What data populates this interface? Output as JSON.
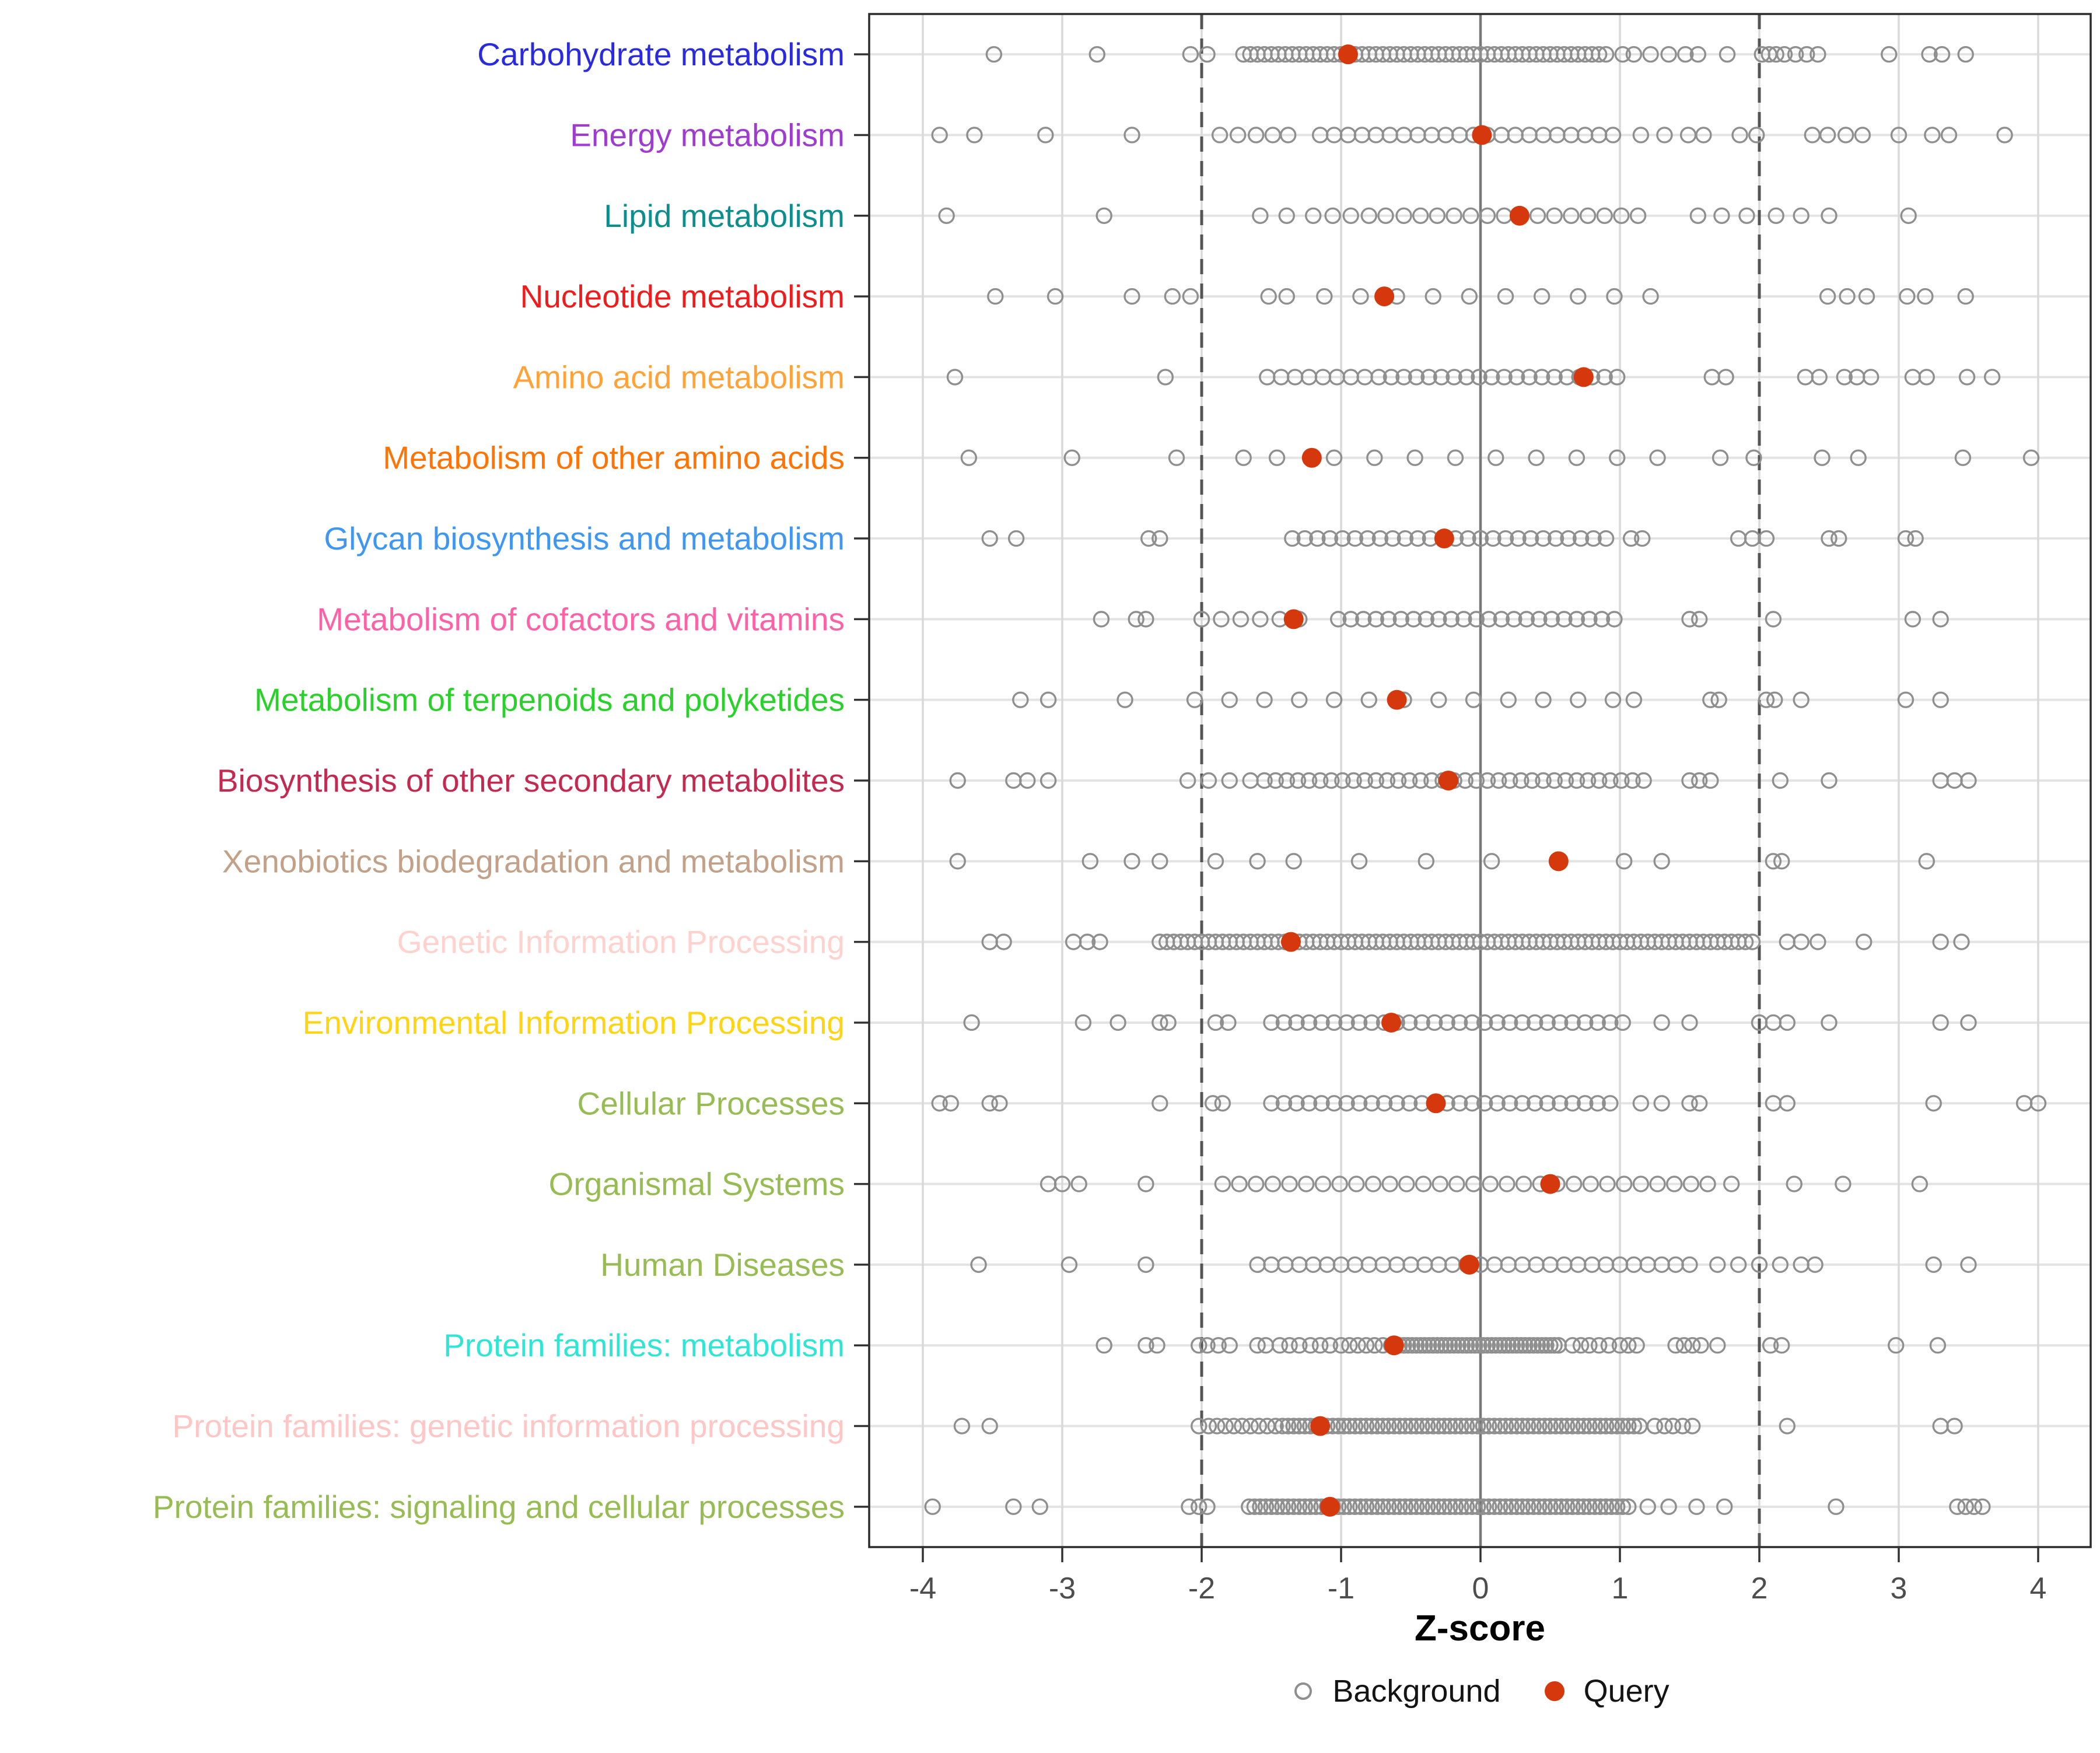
{
  "axis": {
    "xlabel": "Z-score",
    "tick_labels": [
      "-4",
      "-3",
      "-2",
      "-1",
      "0",
      "1",
      "2",
      "3",
      "4"
    ],
    "tick_values": [
      -4,
      -3,
      -2,
      -1,
      0,
      1,
      2,
      3,
      4
    ],
    "reference_lines": {
      "solid_at": 0,
      "dashed_at": [
        -2,
        2
      ]
    }
  },
  "legend": {
    "background_label": "Background",
    "query_label": "Query"
  },
  "colors": {
    "background_stroke": "#8F8F8F",
    "query_fill": "#D5380C",
    "grid_vertical": "#D9D9D9",
    "grid_row": "#E3E3E3",
    "zero_line": "#787878",
    "dashed_line": "#555555",
    "axis_text": "#4D4D4D",
    "tick_mark": "#333333",
    "panel_border": "#2B2B2B",
    "legend_text": "#141414"
  },
  "chart_data": {
    "type": "scatter",
    "title": "",
    "xlabel": "Z-score",
    "xlim": [
      -4.38,
      4.38
    ],
    "grid": true,
    "legend_position": "bottom",
    "series_legend": [
      "Background",
      "Query"
    ],
    "rows": [
      {
        "label": "Carbohydrate metabolism",
        "color": "#2A2ADF",
        "query": -0.95,
        "background": [
          -3.49,
          -2.75,
          -2.08,
          -1.96,
          -1.7,
          -1.65,
          -1.6,
          -1.55,
          -1.5,
          -1.45,
          -1.4,
          -1.35,
          -1.3,
          -1.25,
          -1.2,
          -1.15,
          -1.1,
          -1.05,
          -1.0,
          -0.95,
          -0.9,
          -0.85,
          -0.8,
          -0.75,
          -0.7,
          -0.65,
          -0.6,
          -0.55,
          -0.5,
          -0.45,
          -0.4,
          -0.35,
          -0.3,
          -0.25,
          -0.2,
          -0.15,
          -0.1,
          -0.05,
          0.0,
          0.05,
          0.1,
          0.15,
          0.2,
          0.25,
          0.3,
          0.35,
          0.4,
          0.45,
          0.5,
          0.55,
          0.6,
          0.65,
          0.7,
          0.75,
          0.8,
          0.85,
          0.9,
          1.02,
          1.1,
          1.22,
          1.35,
          1.47,
          1.56,
          1.77,
          2.02,
          2.07,
          2.12,
          2.18,
          2.26,
          2.34,
          2.42,
          2.93,
          3.22,
          3.31,
          3.48
        ]
      },
      {
        "label": "Energy metabolism",
        "color": "#9F3BD0",
        "query": 0.01,
        "background": [
          -3.88,
          -3.63,
          -3.12,
          -2.5,
          -1.87,
          -1.74,
          -1.61,
          -1.49,
          -1.38,
          -1.15,
          -1.05,
          -0.95,
          -0.85,
          -0.75,
          -0.65,
          -0.55,
          -0.45,
          -0.35,
          -0.25,
          -0.15,
          -0.05,
          0.05,
          0.15,
          0.25,
          0.35,
          0.45,
          0.55,
          0.65,
          0.75,
          0.85,
          0.95,
          1.15,
          1.32,
          1.49,
          1.6,
          1.86,
          1.98,
          2.38,
          2.49,
          2.62,
          2.74,
          3.0,
          3.24,
          3.36,
          3.76
        ]
      },
      {
        "label": "Lipid metabolism",
        "color": "#0D8E8E",
        "query": 0.28,
        "background": [
          -3.83,
          -2.7,
          -1.58,
          -1.39,
          -1.2,
          -1.06,
          -0.93,
          -0.8,
          -0.68,
          -0.55,
          -0.43,
          -0.31,
          -0.19,
          -0.07,
          0.05,
          0.17,
          0.29,
          0.41,
          0.53,
          0.65,
          0.77,
          0.89,
          1.01,
          1.13,
          1.56,
          1.73,
          1.91,
          2.12,
          2.3,
          2.5,
          3.07
        ]
      },
      {
        "label": "Nucleotide metabolism",
        "color": "#EE1C1C",
        "query": -0.69,
        "background": [
          -3.48,
          -3.05,
          -2.5,
          -2.21,
          -2.08,
          -1.52,
          -1.39,
          -1.12,
          -0.86,
          -0.6,
          -0.34,
          -0.08,
          0.18,
          0.44,
          0.7,
          0.96,
          1.22,
          2.49,
          2.63,
          2.77,
          3.06,
          3.19,
          3.48
        ]
      },
      {
        "label": "Amino acid metabolism",
        "color": "#FFA238",
        "query": 0.74,
        "background": [
          -3.77,
          -2.26,
          -1.53,
          -1.43,
          -1.33,
          -1.23,
          -1.13,
          -1.03,
          -0.93,
          -0.83,
          -0.73,
          -0.64,
          -0.55,
          -0.46,
          -0.37,
          -0.28,
          -0.19,
          -0.1,
          -0.01,
          0.08,
          0.17,
          0.26,
          0.35,
          0.44,
          0.53,
          0.62,
          0.71,
          0.8,
          0.89,
          0.98,
          1.66,
          1.76,
          2.33,
          2.43,
          2.61,
          2.7,
          2.8,
          3.1,
          3.2,
          3.49,
          3.67
        ]
      },
      {
        "label": "Metabolism of other amino acids",
        "color": "#FF7405",
        "query": -1.21,
        "background": [
          -3.67,
          -2.93,
          -2.18,
          -1.7,
          -1.46,
          -1.05,
          -0.76,
          -0.47,
          -0.18,
          0.11,
          0.4,
          0.69,
          0.98,
          1.27,
          1.72,
          1.96,
          2.45,
          2.71,
          3.46,
          3.95
        ]
      },
      {
        "label": "Glycan biosynthesis and metabolism",
        "color": "#4097F2",
        "query": -0.26,
        "background": [
          -3.52,
          -3.33,
          -2.38,
          -2.3,
          -1.35,
          -1.26,
          -1.17,
          -1.08,
          -0.99,
          -0.9,
          -0.81,
          -0.72,
          -0.63,
          -0.54,
          -0.45,
          -0.36,
          -0.27,
          -0.18,
          -0.09,
          0.0,
          0.09,
          0.18,
          0.27,
          0.36,
          0.45,
          0.54,
          0.63,
          0.72,
          0.81,
          0.9,
          1.08,
          1.16,
          1.85,
          1.95,
          2.05,
          2.5,
          2.57,
          3.05,
          3.12
        ]
      },
      {
        "label": "Metabolism of cofactors and vitamins",
        "color": "#FF61A6",
        "query": -1.34,
        "background": [
          -2.72,
          -2.47,
          -2.4,
          -2.0,
          -1.86,
          -1.72,
          -1.58,
          -1.44,
          -1.3,
          -1.02,
          -0.93,
          -0.84,
          -0.75,
          -0.66,
          -0.57,
          -0.48,
          -0.39,
          -0.3,
          -0.21,
          -0.12,
          -0.03,
          0.06,
          0.15,
          0.24,
          0.33,
          0.42,
          0.51,
          0.6,
          0.69,
          0.78,
          0.87,
          0.96,
          1.5,
          1.57,
          2.1,
          3.1,
          3.3
        ]
      },
      {
        "label": "Metabolism of terpenoids and polyketides",
        "color": "#2BD12B",
        "query": -0.6,
        "background": [
          -3.3,
          -3.1,
          -2.55,
          -2.05,
          -1.8,
          -1.55,
          -1.3,
          -1.05,
          -0.8,
          -0.55,
          -0.3,
          -0.05,
          0.2,
          0.45,
          0.7,
          0.95,
          1.1,
          1.65,
          1.71,
          2.05,
          2.11,
          2.3,
          3.05,
          3.3
        ]
      },
      {
        "label": "Biosynthesis of other secondary metabolites",
        "color": "#C22A50",
        "query": -0.23,
        "background": [
          -3.75,
          -3.35,
          -3.25,
          -3.1,
          -2.1,
          -1.95,
          -1.8,
          -1.65,
          -1.55,
          -1.47,
          -1.39,
          -1.31,
          -1.23,
          -1.15,
          -1.07,
          -0.99,
          -0.91,
          -0.83,
          -0.75,
          -0.67,
          -0.59,
          -0.51,
          -0.43,
          -0.35,
          -0.27,
          -0.19,
          -0.11,
          -0.03,
          0.05,
          0.13,
          0.21,
          0.29,
          0.37,
          0.45,
          0.53,
          0.61,
          0.69,
          0.77,
          0.85,
          0.93,
          1.01,
          1.09,
          1.17,
          1.5,
          1.57,
          1.65,
          2.15,
          2.5,
          3.3,
          3.4,
          3.5
        ]
      },
      {
        "label": "Xenobiotics biodegradation and metabolism",
        "color": "#C3A189",
        "query": 0.56,
        "background": [
          -3.75,
          -2.8,
          -2.5,
          -2.3,
          -1.9,
          -1.6,
          -1.34,
          -0.87,
          -0.39,
          0.08,
          1.03,
          1.3,
          2.1,
          2.16,
          3.2
        ]
      },
      {
        "label": "Genetic Information Processing",
        "color": "#FFD2CE",
        "query": -1.36,
        "background": [
          -3.52,
          -3.42,
          -2.92,
          -2.82,
          -2.73,
          -2.3,
          -2.25,
          -2.2,
          -2.15,
          -2.1,
          -2.05,
          -2.0,
          -1.95,
          -1.9,
          -1.85,
          -1.8,
          -1.75,
          -1.7,
          -1.65,
          -1.6,
          -1.55,
          -1.5,
          -1.45,
          -1.4,
          -1.35,
          -1.3,
          -1.25,
          -1.2,
          -1.15,
          -1.1,
          -1.05,
          -1.0,
          -0.95,
          -0.9,
          -0.85,
          -0.8,
          -0.75,
          -0.7,
          -0.65,
          -0.6,
          -0.55,
          -0.5,
          -0.45,
          -0.4,
          -0.35,
          -0.3,
          -0.25,
          -0.2,
          -0.15,
          -0.1,
          -0.05,
          0.0,
          0.05,
          0.1,
          0.15,
          0.2,
          0.25,
          0.3,
          0.35,
          0.4,
          0.45,
          0.5,
          0.55,
          0.6,
          0.65,
          0.7,
          0.75,
          0.8,
          0.85,
          0.9,
          0.95,
          1.0,
          1.05,
          1.1,
          1.15,
          1.2,
          1.25,
          1.3,
          1.35,
          1.4,
          1.45,
          1.5,
          1.55,
          1.6,
          1.65,
          1.7,
          1.75,
          1.8,
          1.85,
          1.9,
          1.95,
          2.2,
          2.3,
          2.42,
          2.75,
          3.3,
          3.45
        ]
      },
      {
        "label": "Environmental Information Processing",
        "color": "#FFD414",
        "query": -0.64,
        "background": [
          -3.65,
          -2.85,
          -2.6,
          -2.3,
          -2.24,
          -1.9,
          -1.81,
          -1.5,
          -1.41,
          -1.32,
          -1.23,
          -1.14,
          -1.05,
          -0.96,
          -0.87,
          -0.78,
          -0.69,
          -0.6,
          -0.51,
          -0.42,
          -0.33,
          -0.24,
          -0.15,
          -0.06,
          0.03,
          0.12,
          0.21,
          0.3,
          0.39,
          0.48,
          0.57,
          0.66,
          0.75,
          0.84,
          0.93,
          1.02,
          1.3,
          1.5,
          2.0,
          2.1,
          2.2,
          2.5,
          3.3,
          3.5
        ]
      },
      {
        "label": "Cellular Processes",
        "color": "#97BC54",
        "query": -0.32,
        "background": [
          -3.88,
          -3.8,
          -3.52,
          -3.45,
          -2.3,
          -1.92,
          -1.85,
          -1.5,
          -1.41,
          -1.32,
          -1.23,
          -1.14,
          -1.05,
          -0.96,
          -0.87,
          -0.78,
          -0.69,
          -0.6,
          -0.51,
          -0.42,
          -0.33,
          -0.24,
          -0.15,
          -0.06,
          0.03,
          0.12,
          0.21,
          0.3,
          0.39,
          0.48,
          0.57,
          0.66,
          0.75,
          0.84,
          0.93,
          1.15,
          1.3,
          1.5,
          1.57,
          2.1,
          2.2,
          3.25,
          3.9,
          4.0
        ]
      },
      {
        "label": "Organismal Systems",
        "color": "#97BC54",
        "query": 0.5,
        "background": [
          -3.1,
          -3.0,
          -2.88,
          -2.4,
          -1.85,
          -1.73,
          -1.61,
          -1.49,
          -1.37,
          -1.25,
          -1.13,
          -1.01,
          -0.89,
          -0.77,
          -0.65,
          -0.53,
          -0.41,
          -0.29,
          -0.17,
          -0.05,
          0.07,
          0.19,
          0.31,
          0.43,
          0.55,
          0.67,
          0.79,
          0.91,
          1.03,
          1.15,
          1.27,
          1.39,
          1.51,
          1.63,
          1.8,
          2.25,
          2.6,
          3.15
        ]
      },
      {
        "label": "Human Diseases",
        "color": "#97BC54",
        "query": -0.08,
        "background": [
          -3.6,
          -2.95,
          -2.4,
          -1.6,
          -1.5,
          -1.4,
          -1.3,
          -1.2,
          -1.1,
          -1.0,
          -0.9,
          -0.8,
          -0.7,
          -0.6,
          -0.5,
          -0.4,
          -0.3,
          -0.2,
          -0.1,
          0.0,
          0.1,
          0.2,
          0.3,
          0.4,
          0.5,
          0.6,
          0.7,
          0.8,
          0.9,
          1.0,
          1.1,
          1.2,
          1.3,
          1.4,
          1.5,
          1.7,
          1.85,
          2.0,
          2.15,
          2.3,
          2.4,
          3.25,
          3.5
        ]
      },
      {
        "label": "Protein families: metabolism",
        "color": "#2FE5D5",
        "query": -0.62,
        "background": [
          -2.7,
          -2.4,
          -2.32,
          -2.02,
          -1.96,
          -1.88,
          -1.8,
          -1.6,
          -1.54,
          -1.44,
          -1.37,
          -1.3,
          -1.22,
          -1.15,
          -1.08,
          -1.0,
          -0.94,
          -0.88,
          -0.82,
          -0.76,
          -0.7,
          -0.64,
          -0.61,
          -0.58,
          -0.55,
          -0.52,
          -0.49,
          -0.46,
          -0.43,
          -0.4,
          -0.37,
          -0.34,
          -0.31,
          -0.28,
          -0.25,
          -0.22,
          -0.19,
          -0.16,
          -0.13,
          -0.1,
          -0.07,
          -0.04,
          -0.01,
          0.02,
          0.05,
          0.08,
          0.11,
          0.14,
          0.17,
          0.2,
          0.23,
          0.26,
          0.29,
          0.32,
          0.35,
          0.38,
          0.41,
          0.44,
          0.47,
          0.5,
          0.53,
          0.56,
          0.66,
          0.72,
          0.78,
          0.85,
          0.92,
          1.0,
          1.06,
          1.12,
          1.4,
          1.46,
          1.52,
          1.58,
          1.7,
          2.08,
          2.16,
          2.98,
          3.28
        ]
      },
      {
        "label": "Protein families: genetic information processing",
        "color": "#FFC6C6",
        "query": -1.15,
        "background": [
          -3.72,
          -3.52,
          -2.02,
          -1.95,
          -1.89,
          -1.83,
          -1.77,
          -1.71,
          -1.65,
          -1.59,
          -1.53,
          -1.47,
          -1.42,
          -1.38,
          -1.34,
          -1.3,
          -1.26,
          -1.22,
          -1.18,
          -1.14,
          -1.1,
          -1.06,
          -1.02,
          -0.98,
          -0.94,
          -0.9,
          -0.86,
          -0.82,
          -0.78,
          -0.74,
          -0.7,
          -0.66,
          -0.62,
          -0.58,
          -0.54,
          -0.5,
          -0.46,
          -0.42,
          -0.38,
          -0.34,
          -0.3,
          -0.26,
          -0.22,
          -0.18,
          -0.14,
          -0.1,
          -0.06,
          -0.02,
          0.02,
          0.06,
          0.1,
          0.14,
          0.18,
          0.22,
          0.26,
          0.3,
          0.34,
          0.38,
          0.42,
          0.46,
          0.5,
          0.54,
          0.58,
          0.62,
          0.66,
          0.7,
          0.74,
          0.78,
          0.82,
          0.86,
          0.9,
          0.94,
          0.98,
          1.02,
          1.06,
          1.1,
          1.14,
          1.25,
          1.32,
          1.38,
          1.45,
          1.52,
          2.2,
          3.3,
          3.4
        ]
      },
      {
        "label": "Protein families: signaling and cellular processes",
        "color": "#97BC54",
        "query": -1.08,
        "background": [
          -3.93,
          -3.35,
          -3.16,
          -2.09,
          -2.02,
          -1.96,
          -1.66,
          -1.62,
          -1.58,
          -1.54,
          -1.5,
          -1.46,
          -1.42,
          -1.38,
          -1.34,
          -1.3,
          -1.26,
          -1.22,
          -1.18,
          -1.14,
          -1.1,
          -1.06,
          -1.02,
          -0.98,
          -0.94,
          -0.9,
          -0.86,
          -0.82,
          -0.78,
          -0.74,
          -0.7,
          -0.66,
          -0.62,
          -0.58,
          -0.54,
          -0.5,
          -0.46,
          -0.42,
          -0.38,
          -0.34,
          -0.3,
          -0.26,
          -0.22,
          -0.18,
          -0.14,
          -0.1,
          -0.06,
          -0.02,
          0.02,
          0.06,
          0.1,
          0.14,
          0.18,
          0.22,
          0.26,
          0.3,
          0.34,
          0.38,
          0.42,
          0.46,
          0.5,
          0.54,
          0.58,
          0.62,
          0.66,
          0.7,
          0.74,
          0.78,
          0.82,
          0.86,
          0.9,
          0.94,
          0.98,
          1.02,
          1.06,
          1.2,
          1.35,
          1.55,
          1.75,
          2.55,
          3.42,
          3.48,
          3.54,
          3.6
        ]
      }
    ]
  }
}
